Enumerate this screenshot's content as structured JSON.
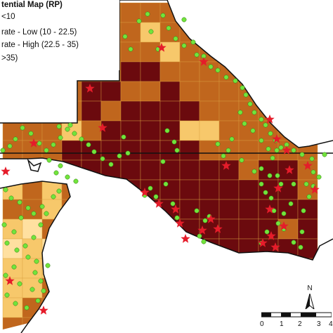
{
  "colors": {
    "very_high": "#6b0a0e",
    "moderate_high": "#c0661d",
    "moderate_low": "#f7c86b",
    "low": "#ffe0a0",
    "grid_line": "#d9a040",
    "boundary": "#111111",
    "point": "#72e43c",
    "point_stroke": "#2e7a10",
    "star": "#e51c2a"
  },
  "legend": {
    "title": "tential Map (RP)",
    "items": [
      {
        "label": "<10",
        "color_key": "low"
      },
      {
        "label": "rate - Low (10 - 22.5)",
        "color_key": "moderate_low"
      },
      {
        "label": "rate - High (22.5 - 35)",
        "color_key": "moderate_high"
      },
      {
        "label": ">35)",
        "color_key": "very_high"
      }
    ]
  },
  "north_arrow": {
    "label": "N",
    "icon": "north-arrow-icon"
  },
  "scale_bar": {
    "labels": [
      "0",
      "1",
      "2",
      "3",
      "4"
    ]
  }
}
